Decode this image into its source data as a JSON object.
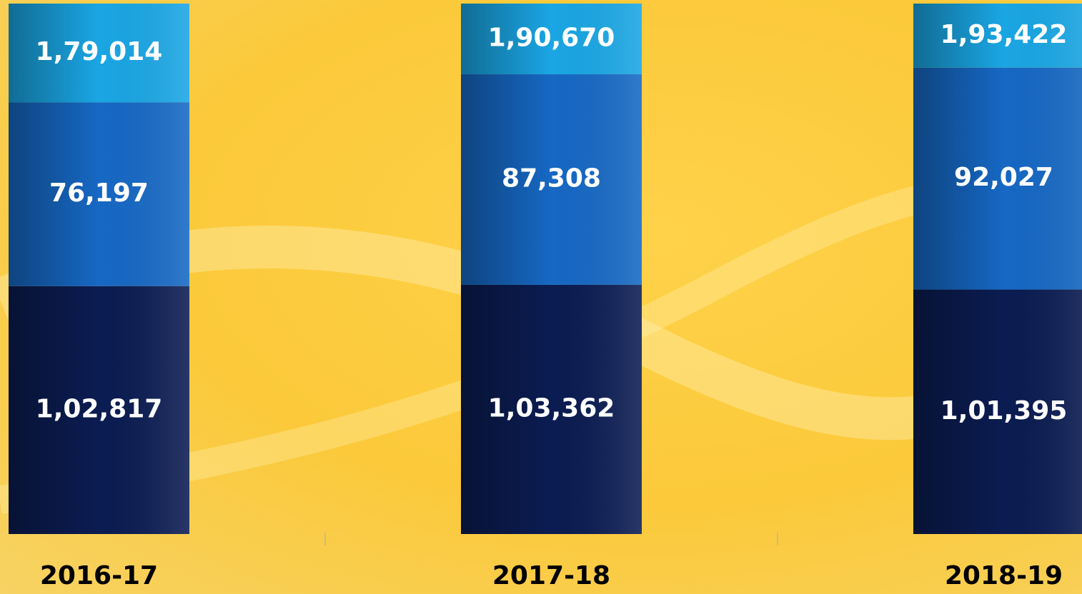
{
  "chart_data": {
    "type": "stacked-bar",
    "categories": [
      "2016-17",
      "2017-18",
      "2018-19"
    ],
    "series": [
      {
        "color": "#0b1c52",
        "values": [
          102817,
          103362,
          101395
        ],
        "value_labels": [
          "1,02,817",
          "1,03,362",
          "1,01,395"
        ]
      },
      {
        "color": "#1668c4",
        "values": [
          76197,
          87308,
          92027
        ],
        "value_labels": [
          "76,197",
          "87,308",
          "92,027"
        ]
      }
    ],
    "totals": [
      179014,
      190670,
      193422
    ],
    "total_labels": [
      "1,79,014",
      "1,90,670",
      "1,93,422"
    ],
    "total_color": "#1aa6e4",
    "ylim": [
      0,
      220000
    ]
  }
}
